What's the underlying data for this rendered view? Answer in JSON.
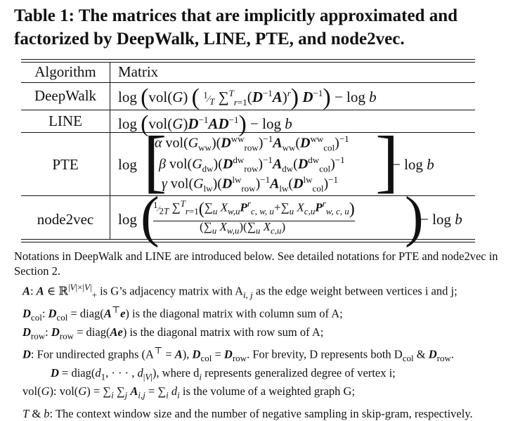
{
  "caption": "Table 1: The matrices that are implicitly approximated and factorized by DeepWalk, LINE, PTE, and node2vec.",
  "header": {
    "algorithm": "Algorithm",
    "matrix": "Matrix"
  },
  "rows": [
    {
      "algorithm": "DeepWalk"
    },
    {
      "algorithm": "LINE"
    },
    {
      "algorithm": "PTE"
    },
    {
      "algorithm": "node2vec"
    }
  ],
  "notes": {
    "intro": "Notations in DeepWalk and LINE are introduced below. See detailed notations for PTE and node2vec in Section 2.",
    "A_text": "is G’s adjacency matrix with A",
    "A_text2": "as the edge weight between vertices i and j;",
    "Dcol_text": "is the diagonal matrix with column sum of A;",
    "Drow_text": "is the diagonal matrix with row sum of A;",
    "D_text": "For undirected graphs (A",
    "D_text2": "For brevity, D represents both D",
    "D_line2": "where d",
    "D_line2b": "represents generalized degree of vertex i;",
    "vol_text": "is the volume of a weighted graph G;",
    "Tb_text": "The context window size and the number of negative sampling in skip-gram, respectively."
  }
}
